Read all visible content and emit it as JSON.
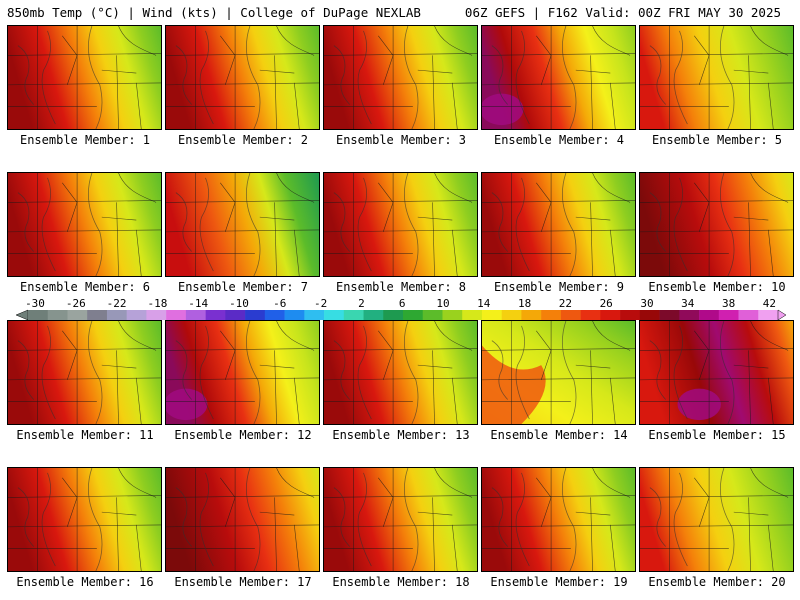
{
  "header": {
    "left": "850mb Temp (°C) | Wind (kts) | College of DuPage NEXLAB",
    "right": "06Z GEFS | F162 Valid: 00Z FRI MAY 30 2025"
  },
  "panels": [
    {
      "label": "Ensemble Member: 1",
      "fill": "hot-west"
    },
    {
      "label": "Ensemble Member: 2",
      "fill": "hot-west"
    },
    {
      "label": "Ensemble Member: 3",
      "fill": "hot-west"
    },
    {
      "label": "Ensemble Member: 4",
      "fill": "hot-west-magenta"
    },
    {
      "label": "Ensemble Member: 5",
      "fill": "mild"
    },
    {
      "label": "Ensemble Member: 6",
      "fill": "hot-west"
    },
    {
      "label": "Ensemble Member: 7",
      "fill": "hot-west-green"
    },
    {
      "label": "Ensemble Member: 8",
      "fill": "hot-west"
    },
    {
      "label": "Ensemble Member: 9",
      "fill": "hot-west"
    },
    {
      "label": "Ensemble Member: 10",
      "fill": "very-hot"
    },
    {
      "label": "Ensemble Member: 11",
      "fill": "hot-west"
    },
    {
      "label": "Ensemble Member: 12",
      "fill": "hot-west-magenta"
    },
    {
      "label": "Ensemble Member: 13",
      "fill": "hot-west"
    },
    {
      "label": "Ensemble Member: 14",
      "fill": "yellow-diag"
    },
    {
      "label": "Ensemble Member: 15",
      "fill": "hot-center-magenta"
    },
    {
      "label": "Ensemble Member: 16",
      "fill": "hot-west"
    },
    {
      "label": "Ensemble Member: 17",
      "fill": "very-hot"
    },
    {
      "label": "Ensemble Member: 18",
      "fill": "hot-west"
    },
    {
      "label": "Ensemble Member: 19",
      "fill": "hot-west"
    },
    {
      "label": "Ensemble Member: 20",
      "fill": "mild"
    }
  ],
  "colorbar": {
    "labels": [
      "-30",
      "-26",
      "-22",
      "-18",
      "-14",
      "-10",
      "-6",
      "-2",
      "2",
      "6",
      "10",
      "14",
      "18",
      "22",
      "26",
      "30",
      "34",
      "38",
      "42"
    ],
    "colors": [
      "#6f7f79",
      "#86948e",
      "#9aa49f",
      "#7f7f8f",
      "#9898b8",
      "#b6a2d8",
      "#d8a0e8",
      "#e06fe0",
      "#b060e0",
      "#7a30d0",
      "#5b2bc6",
      "#2a3cd0",
      "#2060e8",
      "#1e8cf0",
      "#2fbef0",
      "#37dde3",
      "#3ad6b0",
      "#22b080",
      "#1e9a50",
      "#2ea832",
      "#5cbc2a",
      "#9ad21e",
      "#d6e81a",
      "#f4f01a",
      "#f4d010",
      "#f4a808",
      "#f4800a",
      "#ee5810",
      "#e83012",
      "#d8180e",
      "#b80c0c",
      "#980808",
      "#7c0a2a",
      "#900a5a",
      "#b00a8a",
      "#d020b0",
      "#e060d8",
      "#f0a0f0"
    ]
  }
}
